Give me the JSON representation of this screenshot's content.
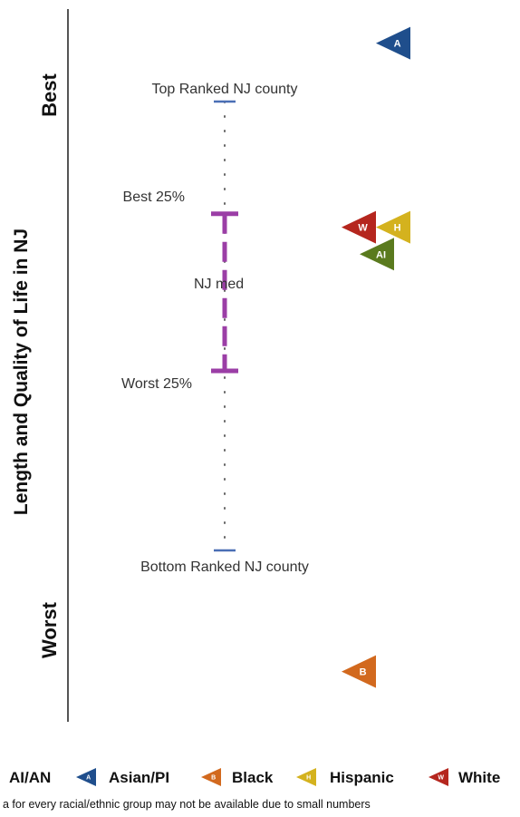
{
  "chart_data": {
    "type": "scatter",
    "title": "",
    "ylabel": "Length and Quality of Life in NJ",
    "y_top_label": "Best",
    "y_bottom_label": "Worst",
    "reference": {
      "top_label": "Top Ranked NJ county",
      "best25_label": "Best 25%",
      "median_label": "NJ med",
      "worst25_label": "Worst 25%",
      "bottom_label": "Bottom Ranked NJ county",
      "top": 100,
      "best25": 75,
      "median": 58,
      "worst25": 40,
      "bottom": 0
    },
    "ylim": [
      -32,
      119
    ],
    "series": [
      {
        "name": "AI/AN",
        "code": "AI",
        "value": 66,
        "color": "#5a7a1e"
      },
      {
        "name": "Asian/PI",
        "code": "A",
        "value": 113,
        "color": "#1f4e8c"
      },
      {
        "name": "Black",
        "code": "B",
        "value": -27,
        "color": "#d2691e"
      },
      {
        "name": "Hispanic",
        "code": "H",
        "value": 72,
        "color": "#d4b21e"
      },
      {
        "name": "White",
        "code": "W",
        "value": 72,
        "color": "#b5261e"
      }
    ],
    "footnote": "a for every racial/ethnic group may not be available due to small numbers",
    "colors": {
      "iqr": "#9b3ea6",
      "range": "#4a6fb5",
      "axis": "#555555"
    }
  }
}
